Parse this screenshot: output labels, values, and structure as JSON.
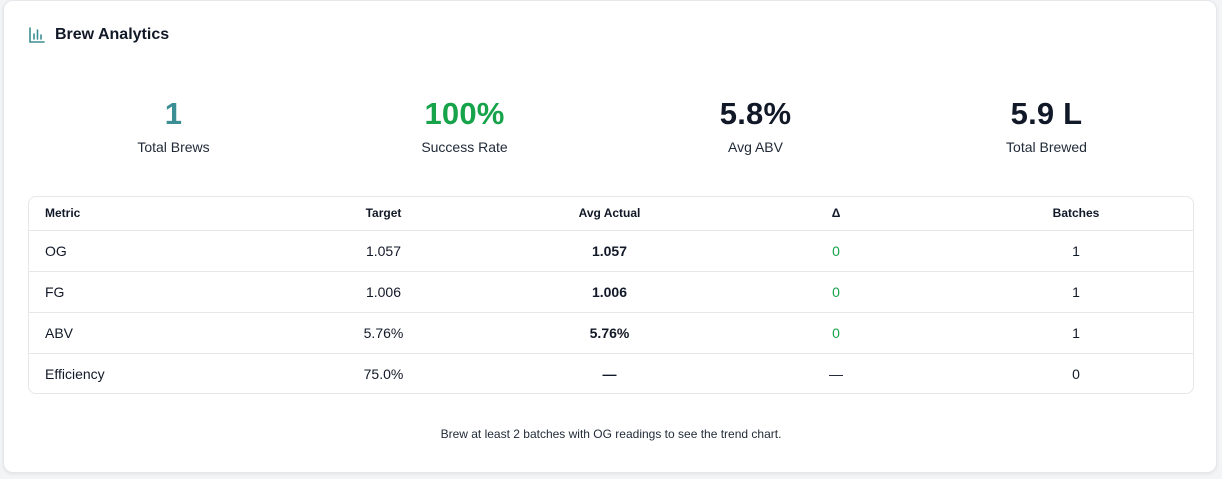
{
  "header": {
    "title": "Brew Analytics",
    "icon": "bar-chart-icon"
  },
  "colors": {
    "teal": "#3b8e93",
    "green": "#16a34a",
    "dark": "#111827"
  },
  "stats": [
    {
      "value": "1",
      "label": "Total Brews"
    },
    {
      "value": "100%",
      "label": "Success Rate"
    },
    {
      "value": "5.8%",
      "label": "Avg ABV"
    },
    {
      "value": "5.9 L",
      "label": "Total Brewed"
    }
  ],
  "table": {
    "headers": [
      "Metric",
      "Target",
      "Avg Actual",
      "Δ",
      "Batches"
    ],
    "rows": [
      {
        "metric": "OG",
        "target": "1.057",
        "actual": "1.057",
        "delta": "0",
        "batches": "1"
      },
      {
        "metric": "FG",
        "target": "1.006",
        "actual": "1.006",
        "delta": "0",
        "batches": "1"
      },
      {
        "metric": "ABV",
        "target": "5.76%",
        "actual": "5.76%",
        "delta": "0",
        "batches": "1"
      },
      {
        "metric": "Efficiency",
        "target": "75.0%",
        "actual": "—",
        "delta": "—",
        "batches": "0"
      }
    ]
  },
  "footnote": "Brew at least 2 batches with OG readings to see the trend chart."
}
